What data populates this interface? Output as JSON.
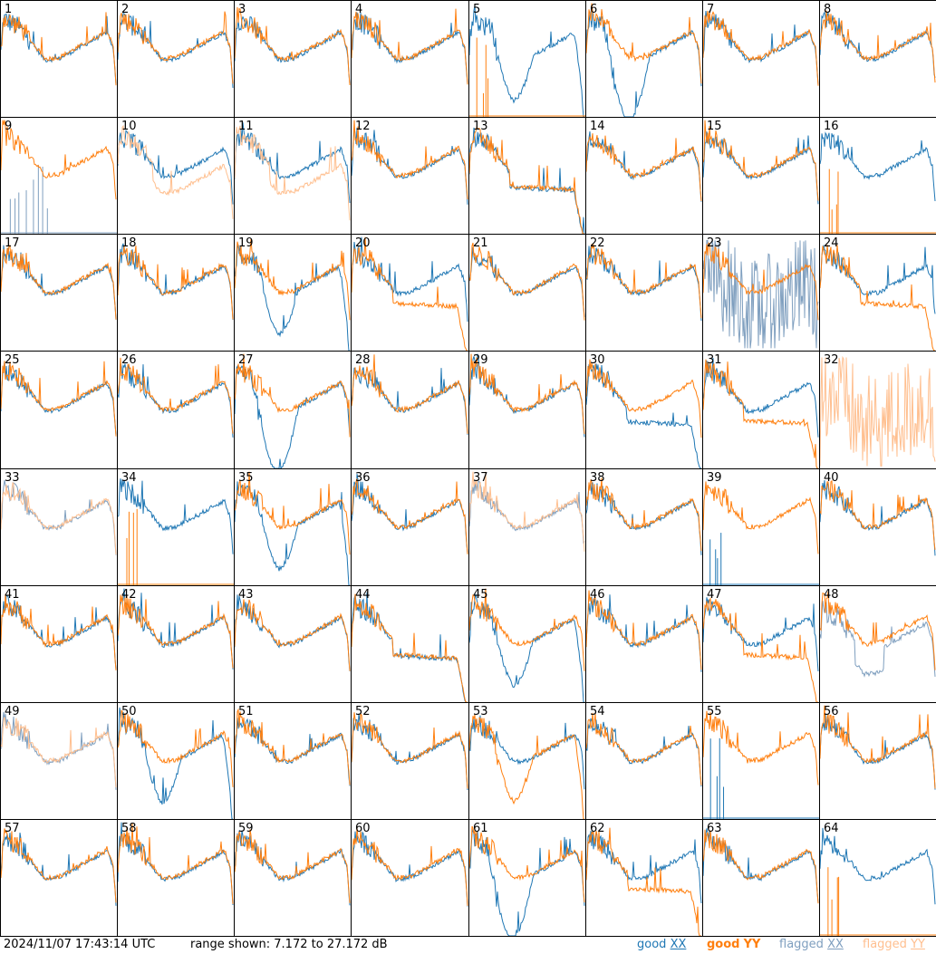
{
  "footer": {
    "timestamp": "2024/11/07 17:43:14 UTC",
    "range_text": "range shown: 7.172 to 27.172 dB"
  },
  "legend": [
    {
      "key": "good_xx",
      "prefix": "good",
      "pol": "XX",
      "color": "#1f77b4"
    },
    {
      "key": "good_yy",
      "prefix": "good",
      "pol": "YY",
      "color": "#ff7f0e"
    },
    {
      "key": "flagged_xx",
      "prefix": "flagged",
      "pol": "XX",
      "color": "#7f9fbf"
    },
    {
      "key": "flagged_yy",
      "prefix": "flagged",
      "pol": "YY",
      "color": "#ffbf8f"
    }
  ],
  "chart_data": {
    "type": "line",
    "ylim": [
      7.172,
      27.172
    ],
    "units": "dB",
    "grid": {
      "rows": 8,
      "cols": 8
    },
    "series_names": [
      "good XX",
      "good YY",
      "flagged XX",
      "flagged YY"
    ],
    "antennas": [
      {
        "id": "1",
        "xx": "normal",
        "yy": "normal",
        "drop": true
      },
      {
        "id": "2",
        "xx": "normal",
        "yy": "normal"
      },
      {
        "id": "3",
        "xx": "normal",
        "yy": "normal"
      },
      {
        "id": "4",
        "xx": "normal",
        "yy": "normal"
      },
      {
        "id": "5",
        "xx": "dip",
        "yy": "spikes_low"
      },
      {
        "id": "6",
        "xx": "deep_dip",
        "yy": "normal"
      },
      {
        "id": "7",
        "xx": "normal",
        "yy": "normal"
      },
      {
        "id": "8",
        "xx": "normal",
        "yy": "normal"
      },
      {
        "id": "9",
        "xx": "flagged_low",
        "yy": "normal"
      },
      {
        "id": "10",
        "xx": "normal",
        "yy": "flagged_low_plateau"
      },
      {
        "id": "11",
        "xx": "normal",
        "yy": "flagged_low_plateau"
      },
      {
        "id": "12",
        "xx": "normal",
        "yy": "normal"
      },
      {
        "id": "13",
        "xx": "low_plateau",
        "yy": "low_plateau",
        "drop": true
      },
      {
        "id": "14",
        "xx": "normal",
        "yy": "normal"
      },
      {
        "id": "15",
        "xx": "normal",
        "yy": "normal"
      },
      {
        "id": "16",
        "xx": "normal",
        "yy": "spikes_low"
      },
      {
        "id": "17",
        "xx": "normal",
        "yy": "normal"
      },
      {
        "id": "18",
        "xx": "normal",
        "yy": "normal"
      },
      {
        "id": "19",
        "xx": "dip",
        "yy": "normal"
      },
      {
        "id": "20",
        "xx": "normal",
        "yy": "low_plateau"
      },
      {
        "id": "21",
        "xx": "normal",
        "yy": "normal"
      },
      {
        "id": "22",
        "xx": "normal",
        "yy": "normal"
      },
      {
        "id": "23",
        "xx": "flagged_noise",
        "yy": "normal"
      },
      {
        "id": "24",
        "xx": "normal",
        "yy": "low_plateau"
      },
      {
        "id": "25",
        "xx": "normal",
        "yy": "normal"
      },
      {
        "id": "26",
        "xx": "normal",
        "yy": "normal"
      },
      {
        "id": "27",
        "xx": "deep_dip",
        "yy": "normal"
      },
      {
        "id": "28",
        "xx": "normal",
        "yy": "normal"
      },
      {
        "id": "29",
        "xx": "normal",
        "yy": "normal"
      },
      {
        "id": "30",
        "xx": "low_plateau",
        "yy": "normal"
      },
      {
        "id": "31",
        "xx": "normal",
        "yy": "low_plateau"
      },
      {
        "id": "32",
        "xx": "none",
        "yy": "flagged_noise"
      },
      {
        "id": "33",
        "xx": "flagged",
        "yy": "flagged"
      },
      {
        "id": "34",
        "xx": "normal",
        "yy": "spikes_low"
      },
      {
        "id": "35",
        "xx": "dip",
        "yy": "normal"
      },
      {
        "id": "36",
        "xx": "normal",
        "yy": "normal"
      },
      {
        "id": "37",
        "xx": "flagged",
        "yy": "flagged"
      },
      {
        "id": "38",
        "xx": "normal",
        "yy": "normal"
      },
      {
        "id": "39",
        "xx": "spikes_low",
        "yy": "normal"
      },
      {
        "id": "40",
        "xx": "normal",
        "yy": "normal"
      },
      {
        "id": "41",
        "xx": "normal",
        "yy": "normal"
      },
      {
        "id": "42",
        "xx": "normal",
        "yy": "normal"
      },
      {
        "id": "43",
        "xx": "normal",
        "yy": "normal"
      },
      {
        "id": "44",
        "xx": "low_plateau",
        "yy": "low_plateau",
        "drop": true
      },
      {
        "id": "45",
        "xx": "dip",
        "yy": "normal"
      },
      {
        "id": "46",
        "xx": "normal",
        "yy": "normal"
      },
      {
        "id": "47",
        "xx": "normal",
        "yy": "low_plateau"
      },
      {
        "id": "48",
        "xx": "flagged_dip",
        "yy": "normal"
      },
      {
        "id": "49",
        "xx": "flagged",
        "yy": "flagged"
      },
      {
        "id": "50",
        "xx": "dip",
        "yy": "normal"
      },
      {
        "id": "51",
        "xx": "normal",
        "yy": "normal"
      },
      {
        "id": "52",
        "xx": "normal",
        "yy": "normal"
      },
      {
        "id": "53",
        "xx": "normal",
        "yy": "dip"
      },
      {
        "id": "54",
        "xx": "normal",
        "yy": "normal"
      },
      {
        "id": "55",
        "xx": "spikes_low",
        "yy": "normal"
      },
      {
        "id": "56",
        "xx": "normal",
        "yy": "normal"
      },
      {
        "id": "57",
        "xx": "normal",
        "yy": "normal"
      },
      {
        "id": "58",
        "xx": "normal",
        "yy": "normal"
      },
      {
        "id": "59",
        "xx": "normal",
        "yy": "normal"
      },
      {
        "id": "60",
        "xx": "normal",
        "yy": "normal"
      },
      {
        "id": "61",
        "xx": "deep_dip",
        "yy": "normal"
      },
      {
        "id": "62",
        "xx": "normal",
        "yy": "low_plateau"
      },
      {
        "id": "63",
        "xx": "normal",
        "yy": "normal"
      },
      {
        "id": "64",
        "xx": "normal",
        "yy": "spikes_low"
      }
    ]
  }
}
